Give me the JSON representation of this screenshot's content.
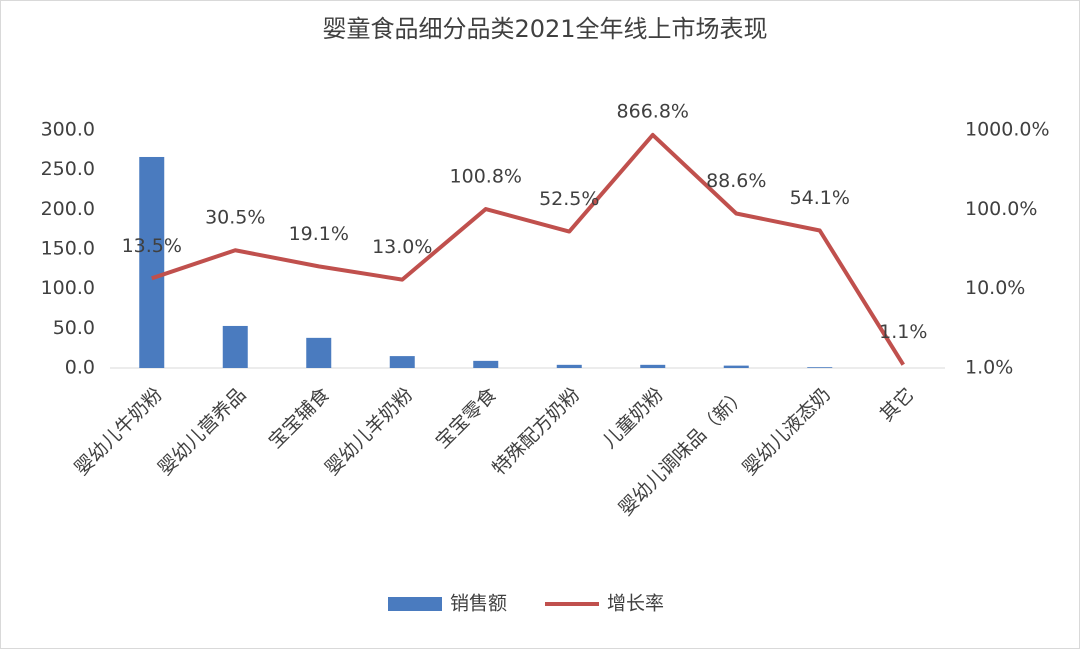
{
  "chart_data": {
    "type": "bar_line",
    "title": "婴童食品细分品类2021全年线上市场表现",
    "categories": [
      "婴幼儿牛奶粉",
      "婴幼儿营养品",
      "宝宝辅食",
      "婴幼儿羊奶粉",
      "宝宝零食",
      "特殊配方奶粉",
      "儿童奶粉",
      "婴幼儿调味品（新）",
      "婴幼儿液态奶",
      "其它"
    ],
    "series": [
      {
        "name": "销售额",
        "type": "bar",
        "color": "#4a7bbf",
        "values": [
          266,
          53,
          38,
          15,
          9,
          4,
          4,
          3,
          1,
          0
        ]
      },
      {
        "name": "增长率",
        "type": "line",
        "axis": "y2",
        "color": "#c0504d",
        "values": [
          13.5,
          30.5,
          19.1,
          13.0,
          100.8,
          52.5,
          866.8,
          88.6,
          54.1,
          1.1
        ],
        "value_labels": [
          "13.5%",
          "30.5%",
          "19.1%",
          "13.0%",
          "100.8%",
          "52.5%",
          "866.8%",
          "88.6%",
          "54.1%",
          "1.1%"
        ]
      }
    ],
    "ylim": [
      0,
      300
    ],
    "yticks": [
      {
        "value": 0,
        "label": "0.0"
      },
      {
        "value": 50,
        "label": "50.0"
      },
      {
        "value": 100,
        "label": "100.0"
      },
      {
        "value": 150,
        "label": "150.0"
      },
      {
        "value": 200,
        "label": "200.0"
      },
      {
        "value": 250,
        "label": "250.0"
      },
      {
        "value": 300,
        "label": "300.0"
      }
    ],
    "y2lim": [
      1,
      1000
    ],
    "y2scale": "log",
    "y2ticks": [
      {
        "value": 1,
        "label": "1.0%"
      },
      {
        "value": 10,
        "label": "10.0%"
      },
      {
        "value": 100,
        "label": "100.0%"
      },
      {
        "value": 1000,
        "label": "1000.0%"
      }
    ],
    "legend": "bottom"
  }
}
